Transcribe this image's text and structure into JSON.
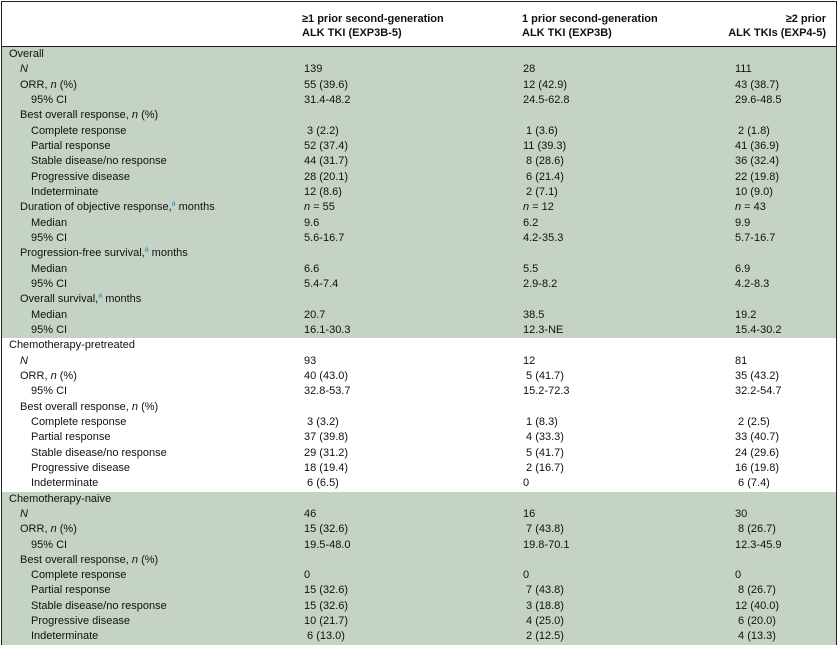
{
  "header": {
    "col1_line1": "≥1 prior second-generation",
    "col1_line2": "ALK TKI (EXP3B-5)",
    "col2_line1": "1 prior second-generation",
    "col2_line2": "ALK TKI (EXP3B)",
    "col3_line1": "≥2 prior",
    "col3_line2": "ALK TKIs (EXP4-5)"
  },
  "sections": [
    {
      "title": "Overall",
      "shade": "#c5d3c5",
      "rows": [
        {
          "label": "N",
          "italic": true,
          "level": 1,
          "v": [
            "139",
            "28",
            "111"
          ]
        },
        {
          "label": "ORR, n (%)",
          "level": 1,
          "v": [
            "55 (39.6)",
            "12 (42.9)",
            "43 (38.7)"
          ]
        },
        {
          "label": "95% CI",
          "level": 2,
          "v": [
            "31.4-48.2",
            "24.5-62.8",
            "29.6-48.5"
          ]
        },
        {
          "label": "Best overall response, n (%)",
          "level": 1,
          "v": [
            "",
            "",
            ""
          ]
        },
        {
          "label": "Complete response",
          "level": 2,
          "v": [
            " 3 (2.2)",
            " 1 (3.6)",
            " 2 (1.8)"
          ]
        },
        {
          "label": "Partial response",
          "level": 2,
          "v": [
            "52 (37.4)",
            "11 (39.3)",
            "41 (36.9)"
          ]
        },
        {
          "label": "Stable disease/no response",
          "level": 2,
          "v": [
            "44 (31.7)",
            " 8 (28.6)",
            "36 (32.4)"
          ]
        },
        {
          "label": "Progressive disease",
          "level": 2,
          "v": [
            "28 (20.1)",
            " 6 (21.4)",
            "22 (19.8)"
          ]
        },
        {
          "label": "Indeterminate",
          "level": 2,
          "v": [
            "12 (8.6)",
            " 2 (7.1)",
            "10 (9.0)"
          ]
        },
        {
          "label": "Duration of objective response,",
          "sup": "a",
          "suffix": " months",
          "level": 1,
          "v": [
            "n = 55",
            "n = 12",
            "n = 43"
          ]
        },
        {
          "label": "Median",
          "level": 2,
          "v": [
            "9.6",
            "6.2",
            "9.9"
          ]
        },
        {
          "label": "95% CI",
          "level": 2,
          "v": [
            "5.6-16.7",
            "4.2-35.3",
            "5.7-16.7"
          ]
        },
        {
          "label": "Progression-free survival,",
          "sup": "a",
          "suffix": " months",
          "level": 1,
          "v": [
            "",
            "",
            ""
          ]
        },
        {
          "label": "Median",
          "level": 2,
          "v": [
            "6.6",
            "5.5",
            "6.9"
          ]
        },
        {
          "label": "95% CI",
          "level": 2,
          "v": [
            "5.4-7.4",
            "2.9-8.2",
            "4.2-8.3"
          ]
        },
        {
          "label": "Overall survival,",
          "sup": "a",
          "suffix": " months",
          "level": 1,
          "v": [
            "",
            "",
            ""
          ]
        },
        {
          "label": "Median",
          "level": 2,
          "v": [
            "20.7",
            "38.5",
            "19.2"
          ]
        },
        {
          "label": "95% CI",
          "level": 2,
          "v": [
            "16.1-30.3",
            "12.3-NE",
            "15.4-30.2"
          ]
        }
      ]
    },
    {
      "title": "Chemotherapy-pretreated",
      "shade": "#ffffff",
      "rows": [
        {
          "label": "N",
          "italic": true,
          "level": 1,
          "v": [
            "93",
            "12",
            "81"
          ]
        },
        {
          "label": "ORR, n (%)",
          "level": 1,
          "v": [
            "40 (43.0)",
            " 5 (41.7)",
            "35 (43.2)"
          ]
        },
        {
          "label": "95% CI",
          "level": 2,
          "v": [
            "32.8-53.7",
            "15.2-72.3",
            "32.2-54.7"
          ]
        },
        {
          "label": "Best overall response, n (%)",
          "level": 1,
          "v": [
            "",
            "",
            ""
          ]
        },
        {
          "label": "Complete response",
          "level": 2,
          "v": [
            " 3 (3.2)",
            " 1 (8.3)",
            " 2 (2.5)"
          ]
        },
        {
          "label": "Partial response",
          "level": 2,
          "v": [
            "37 (39.8)",
            " 4 (33.3)",
            "33 (40.7)"
          ]
        },
        {
          "label": "Stable disease/no response",
          "level": 2,
          "v": [
            "29 (31.2)",
            " 5 (41.7)",
            "24 (29.6)"
          ]
        },
        {
          "label": "Progressive disease",
          "level": 2,
          "v": [
            "18 (19.4)",
            " 2 (16.7)",
            "16 (19.8)"
          ]
        },
        {
          "label": "Indeterminate",
          "level": 2,
          "v": [
            " 6 (6.5)",
            "0",
            " 6 (7.4)"
          ]
        }
      ]
    },
    {
      "title": "Chemotherapy-naive",
      "shade": "#c5d3c5",
      "rows": [
        {
          "label": "N",
          "italic": true,
          "level": 1,
          "v": [
            "46",
            "16",
            "30"
          ]
        },
        {
          "label": "ORR, n (%)",
          "level": 1,
          "v": [
            "15 (32.6)",
            " 7 (43.8)",
            " 8 (26.7)"
          ]
        },
        {
          "label": "95% CI",
          "level": 2,
          "v": [
            "19.5-48.0",
            "19.8-70.1",
            "12.3-45.9"
          ]
        },
        {
          "label": "Best overall response, n (%)",
          "level": 1,
          "v": [
            "",
            "",
            ""
          ]
        },
        {
          "label": "Complete response",
          "level": 2,
          "v": [
            "0",
            "0",
            "0"
          ]
        },
        {
          "label": "Partial response",
          "level": 2,
          "v": [
            "15 (32.6)",
            " 7 (43.8)",
            " 8 (26.7)"
          ]
        },
        {
          "label": "Stable disease/no response",
          "level": 2,
          "v": [
            "15 (32.6)",
            " 3 (18.8)",
            "12 (40.0)"
          ]
        },
        {
          "label": "Progressive disease",
          "level": 2,
          "v": [
            "10 (21.7)",
            " 4 (25.0)",
            " 6 (20.0)"
          ]
        },
        {
          "label": "Indeterminate",
          "level": 2,
          "v": [
            " 6 (13.0)",
            " 2 (12.5)",
            " 4 (13.3)"
          ]
        }
      ]
    }
  ]
}
